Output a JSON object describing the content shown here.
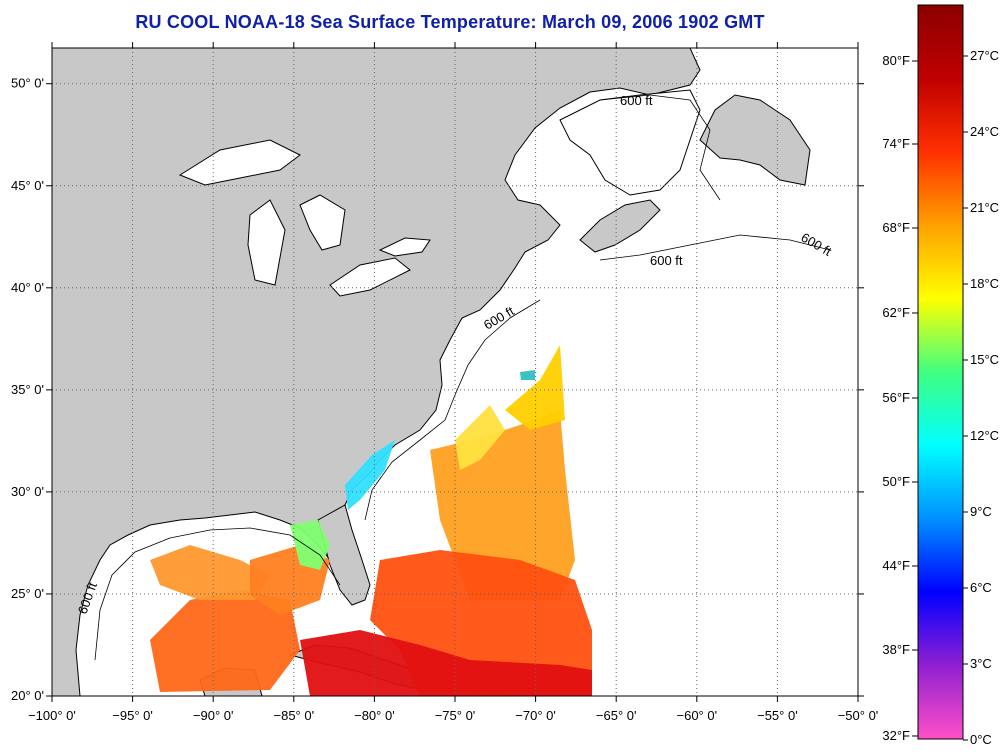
{
  "title": "RU COOL  NOAA-18  Sea Surface Temperature:  March 09, 2006 1902 GMT",
  "map": {
    "lon_ticks": [
      "−100° 0'",
      "−95° 0'",
      "−90° 0'",
      "−85° 0'",
      "−80° 0'",
      "−75° 0'",
      "−70° 0'",
      "−65° 0'",
      "−60° 0'",
      "−55° 0'",
      "−50° 0'"
    ],
    "lat_ticks": [
      "20° 0'",
      "25° 0'",
      "30° 0'",
      "35° 0'",
      "40° 0'",
      "45° 0'",
      "50° 0'"
    ],
    "isobath_label": "600 ft",
    "colors": {
      "land": "#c8c8c8",
      "water": "#ffffff",
      "grid": "#555555"
    }
  },
  "colorbar": {
    "fahrenheit_labels": [
      "80°F",
      "74°F",
      "68°F",
      "62°F",
      "56°F",
      "50°F",
      "44°F",
      "38°F",
      "32°F"
    ],
    "celsius_labels": [
      "27°C",
      "24°C",
      "21°C",
      "18°C",
      "15°C",
      "12°C",
      "9°C",
      "6°C",
      "3°C",
      "0°C"
    ],
    "gradient_colors": [
      "#ff50c8",
      "#9020d0",
      "#0000ff",
      "#0090ff",
      "#00ffff",
      "#40ff80",
      "#ffff00",
      "#ffa000",
      "#ff3000",
      "#c00000",
      "#8b0000"
    ]
  }
}
